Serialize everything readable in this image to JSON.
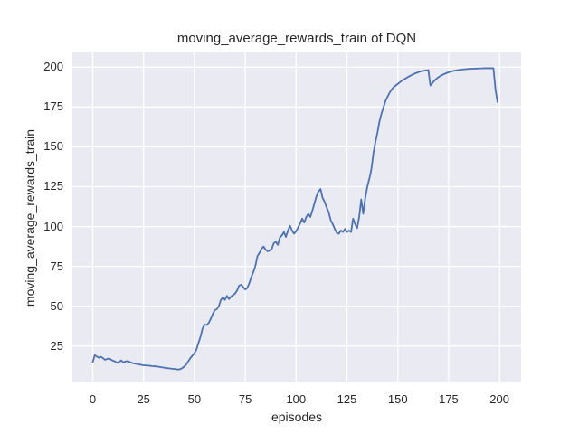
{
  "chart_data": {
    "type": "line",
    "title": "moving_average_rewards_train of DQN",
    "xlabel": "episodes",
    "ylabel": "moving_average_rewards_train",
    "x_ticks": [
      0,
      25,
      50,
      75,
      100,
      125,
      150,
      175,
      200
    ],
    "x_tick_labels": [
      "0",
      "25",
      "50",
      "75",
      "100",
      "125",
      "150",
      "175",
      "200"
    ],
    "y_ticks": [
      25,
      50,
      75,
      100,
      125,
      150,
      175,
      200
    ],
    "y_tick_labels": [
      "25",
      "50",
      "75",
      "100",
      "125",
      "150",
      "175",
      "200"
    ],
    "xlim": [
      -10,
      210.6
    ],
    "ylim": [
      2.2,
      209.2
    ],
    "grid": true,
    "legend": "none",
    "style": {
      "axes_bg": "#eaeaf2",
      "grid_color": "#ffffff",
      "line_color": "#4c72b0",
      "text_color": "#262626",
      "figure_bg": "#ffffff",
      "line_width": 1.8
    },
    "series": [
      {
        "name": "moving_average_rewards_train",
        "x_start": 0,
        "x_step": 1,
        "values": [
          15.0,
          19.3,
          18.5,
          17.7,
          18.3,
          17.5,
          16.4,
          16.9,
          17.3,
          16.5,
          15.8,
          15.4,
          14.5,
          15.2,
          16.0,
          14.8,
          15.3,
          15.6,
          15.2,
          14.6,
          14.2,
          14.0,
          13.7,
          13.5,
          13.2,
          13.0,
          12.9,
          12.8,
          12.7,
          12.5,
          12.4,
          12.3,
          12.1,
          11.9,
          11.7,
          11.5,
          11.3,
          11.1,
          11.0,
          10.8,
          10.7,
          10.5,
          10.3,
          10.6,
          11.2,
          12.2,
          13.5,
          15.5,
          17.5,
          19.0,
          20.5,
          23.0,
          27.0,
          31.0,
          36.0,
          38.5,
          38.2,
          39.5,
          42.0,
          45.0,
          47.5,
          48.2,
          50.0,
          54.0,
          55.5,
          54.0,
          56.5,
          54.5,
          56.0,
          57.0,
          58.0,
          60.0,
          63.0,
          63.5,
          62.0,
          60.5,
          61.5,
          64.5,
          68.5,
          71.5,
          75.5,
          81.5,
          83.5,
          86.0,
          87.5,
          85.5,
          84.5,
          85.0,
          86.0,
          89.5,
          90.5,
          88.5,
          93.0,
          94.5,
          96.5,
          93.5,
          97.5,
          100.5,
          97.5,
          95.5,
          97.0,
          99.5,
          102.0,
          105.0,
          102.5,
          106.0,
          108.0,
          106.0,
          110.0,
          114.5,
          119.0,
          122.0,
          123.5,
          118.0,
          115.5,
          112.0,
          109.0,
          104.0,
          101.5,
          98.5,
          96.0,
          95.5,
          97.5,
          96.5,
          98.5,
          96.5,
          97.5,
          96.5,
          105.0,
          101.5,
          99.0,
          106.0,
          117.0,
          108.0,
          118.0,
          125.0,
          130.0,
          136.0,
          146.0,
          153.0,
          159.0,
          166.0,
          171.0,
          175.0,
          179.0,
          181.5,
          184.0,
          186.0,
          187.5,
          188.5,
          189.5,
          190.5,
          191.5,
          192.3,
          193.0,
          193.8,
          194.5,
          195.2,
          195.8,
          196.3,
          196.8,
          197.2,
          197.5,
          197.8,
          198.0,
          198.2,
          188.5,
          190.0,
          191.5,
          192.7,
          193.7,
          194.5,
          195.2,
          195.8,
          196.3,
          196.8,
          197.2,
          197.5,
          197.8,
          198.0,
          198.2,
          198.4,
          198.5,
          198.7,
          198.8,
          198.9,
          199.0,
          199.0,
          199.1,
          199.1,
          199.2,
          199.2,
          199.3,
          199.3,
          199.3,
          199.3,
          199.3,
          199.3,
          186.0,
          178.0
        ]
      }
    ]
  }
}
